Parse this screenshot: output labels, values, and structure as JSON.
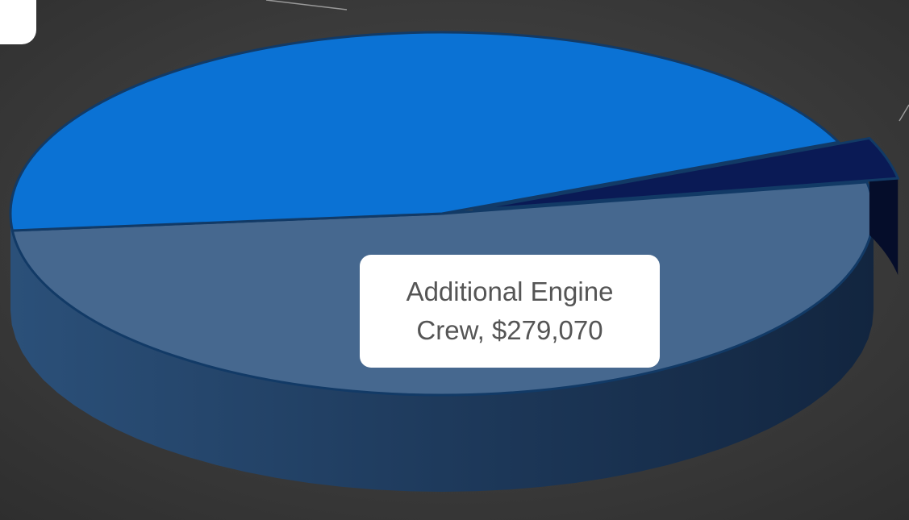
{
  "chart_data": {
    "type": "pie",
    "values": [
      279070,
      245000,
      20000
    ],
    "value_labels": [
      "Additional Engine Crew, $279,070",
      null,
      null
    ],
    "colors": [
      "#46688f",
      "#0b72d4",
      "#0a1a55"
    ],
    "exploded": [
      false,
      false,
      true
    ]
  }
}
